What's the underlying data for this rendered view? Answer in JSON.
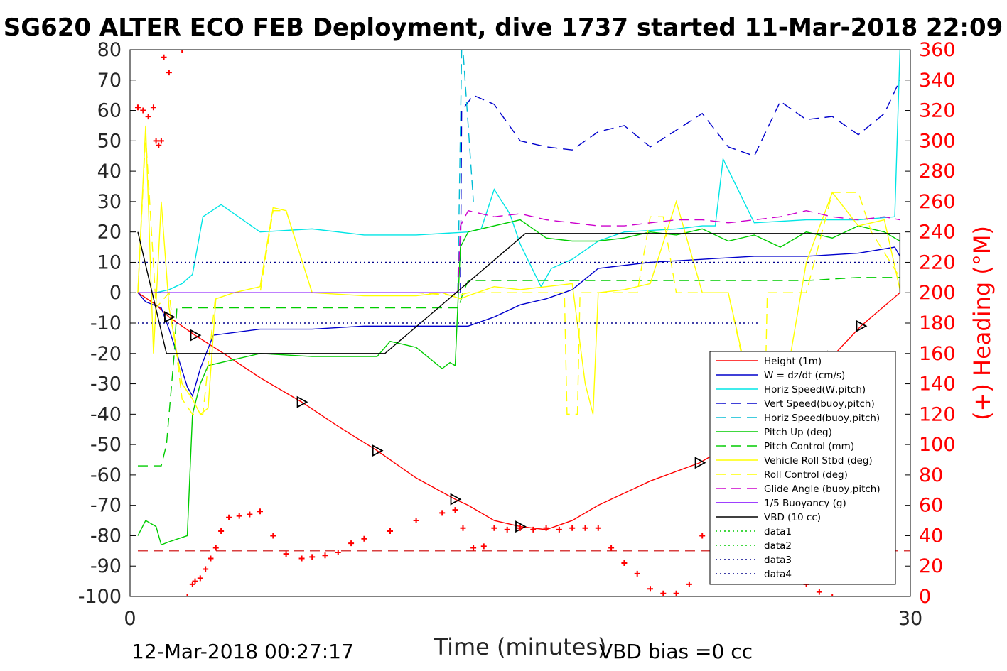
{
  "chart_data": {
    "type": "line",
    "title": "SG620 ALTER ECO FEB Deployment, dive 1737 started 11-Mar-2018 22:09",
    "xlabel": "Time (minutes)",
    "ylabel_right": "(+) Heading (°M)",
    "xlim": [
      0,
      30
    ],
    "ylim_left": [
      -100,
      80
    ],
    "ylim_right": [
      0,
      360
    ],
    "x_ticks": [
      "0",
      "30"
    ],
    "y_ticks_left": [
      "80",
      "70",
      "60",
      "50",
      "40",
      "30",
      "20",
      "10",
      "0",
      "-10",
      "-20",
      "-30",
      "-40",
      "-50",
      "-60",
      "-70",
      "-80",
      "-90",
      "-100"
    ],
    "y_ticks_right": [
      "360",
      "340",
      "320",
      "300",
      "280",
      "260",
      "240",
      "220",
      "200",
      "180",
      "160",
      "140",
      "120",
      "100",
      "80",
      "60",
      "40",
      "20",
      "0"
    ],
    "footer_left": "12-Mar-2018 00:27:17",
    "footer_right": "VBD bias =0 cc",
    "grid": false,
    "legend_position": "lower-right",
    "series": [
      {
        "name": "Height (1m)",
        "color": "#ff0000",
        "style": "solid",
        "x": [
          0.3,
          1.0,
          1.5,
          2.5,
          3.6,
          5,
          6.6,
          8,
          9.5,
          11,
          12.5,
          13,
          14,
          15,
          16,
          17,
          18,
          20,
          21.9,
          23.5,
          24,
          25,
          26,
          27,
          28.1,
          29.6
        ],
        "y": [
          0,
          -4,
          -8,
          -14,
          -20,
          -28,
          -36,
          -44,
          -52,
          -61,
          -68,
          -70,
          -75,
          -77,
          -78,
          -75,
          -70,
          -62,
          -56,
          -48,
          -43,
          -38,
          -30,
          -21,
          -11,
          0
        ]
      },
      {
        "name": "W = dz/dt (cm/s)",
        "color": "#0000cc",
        "style": "solid",
        "x": [
          0.3,
          0.6,
          1.2,
          1.5,
          1.8,
          2.2,
          2.4,
          2.7,
          3.2,
          5,
          7,
          9,
          11,
          13,
          14,
          15,
          16,
          17,
          18,
          20,
          22,
          24,
          26,
          28,
          29.4,
          29.6
        ],
        "y": [
          0,
          -3,
          -5,
          -12,
          -20,
          -31,
          -34,
          -25,
          -14,
          -12,
          -12,
          -11,
          -11,
          -11,
          -8,
          -4,
          -2,
          1,
          8,
          10,
          11,
          12,
          12,
          13,
          15,
          12
        ]
      },
      {
        "name": "Horiz Speed(W,pitch)",
        "color": "#00e5e5",
        "style": "solid",
        "x": [
          0.3,
          1.0,
          1.5,
          2.0,
          2.4,
          2.8,
          3.5,
          5,
          7,
          9,
          11,
          13,
          13.5,
          14,
          14.6,
          15,
          15.8,
          16.2,
          17,
          18,
          19,
          21,
          22,
          22.5,
          22.8,
          24,
          26,
          28,
          29.4,
          29.6
        ],
        "y": [
          0,
          0,
          1,
          3,
          6,
          25,
          29,
          20,
          21,
          19,
          19,
          20,
          21,
          34,
          26,
          16,
          2,
          8,
          11,
          17,
          20,
          21,
          22,
          22,
          44,
          23,
          24,
          24,
          25,
          80
        ]
      },
      {
        "name": "Vert Speed(buoy,pitch)",
        "color": "#0000cc",
        "style": "dashed",
        "x": [
          12.7,
          12.75,
          13.2,
          14,
          14.5,
          15,
          16,
          17,
          18,
          19,
          20,
          22,
          23,
          24,
          25,
          26,
          27,
          28,
          29,
          29.6
        ],
        "y": [
          0,
          60,
          65,
          62,
          56,
          50,
          48,
          47,
          53,
          55,
          48,
          59,
          48,
          45,
          63,
          57,
          58,
          52,
          59,
          70
        ]
      },
      {
        "name": "Horiz Speed(buoy,pitch)",
        "color": "#00bcd4",
        "style": "dashed",
        "x": [
          12.6,
          12.75,
          12.8,
          13.2
        ],
        "y": [
          0,
          80,
          80,
          30
        ]
      },
      {
        "name": "Pitch Up (deg)",
        "color": "#00cc00",
        "style": "solid",
        "x": [
          0.3,
          0.6,
          1.0,
          1.2,
          1.5,
          2.2,
          2.4,
          2.7,
          3.0,
          4.0,
          5,
          7,
          9,
          9.5,
          10,
          11,
          12,
          12.3,
          12.5,
          12.7,
          13,
          14,
          15,
          16,
          17,
          18,
          19,
          20,
          21,
          22,
          23,
          24,
          25,
          26,
          27,
          28,
          29,
          29.6
        ],
        "y": [
          -80,
          -75,
          -77,
          -83,
          -82,
          -80,
          -40,
          -30,
          -24,
          -22,
          -20,
          -21,
          -21,
          -21,
          -16,
          -18,
          -25,
          -23,
          -24,
          15,
          20,
          22,
          24,
          18,
          17,
          17,
          18,
          20,
          19,
          21,
          17,
          19,
          15,
          20,
          18,
          22,
          20,
          17
        ]
      },
      {
        "name": "Pitch Control (mm)",
        "color": "#00cc00",
        "style": "dashed",
        "x": [
          0.3,
          1.2,
          1.4,
          1.5,
          1.6,
          1.7,
          1.8,
          2.5,
          12.6,
          12.7,
          12.8,
          13,
          15,
          17,
          20,
          22,
          24,
          26,
          28,
          29.6
        ],
        "y": [
          -57,
          -57,
          -50,
          -40,
          -30,
          -20,
          -5,
          -5,
          -5,
          -3,
          0,
          4,
          4,
          4,
          4,
          4,
          4,
          4,
          5,
          5
        ]
      },
      {
        "name": "Vehicle Roll Stbd (deg)",
        "color": "#ffff00",
        "style": "solid",
        "x": [
          0.3,
          0.6,
          0.9,
          1.2,
          1.5,
          2.0,
          2.4,
          2.7,
          3.0,
          3.3,
          4.0,
          5,
          5.5,
          6,
          7,
          9,
          11,
          12,
          12.7,
          13,
          14,
          15,
          16,
          17,
          17.5,
          17.8,
          18,
          19,
          20,
          21,
          22,
          23,
          24,
          25,
          26,
          27,
          28,
          29,
          29.6
        ],
        "y": [
          0,
          55,
          -20,
          30,
          -5,
          -30,
          -35,
          -40,
          -38,
          -2,
          0,
          2,
          28,
          27,
          0,
          -1,
          -1,
          0,
          -2,
          -1,
          2,
          1,
          2,
          3,
          -30,
          -40,
          0,
          1,
          3,
          30,
          0,
          0,
          -38,
          -40,
          10,
          33,
          22,
          24,
          1
        ]
      },
      {
        "name": "Roll Control (deg)",
        "color": "#ffff00",
        "style": "dashed",
        "x": [
          0.3,
          0.6,
          1.0,
          1.5,
          2.0,
          2.4,
          2.8,
          3.3,
          5,
          5.5,
          6,
          7,
          9,
          11,
          12.6,
          13,
          15,
          16.7,
          16.8,
          17.2,
          17.3,
          18,
          19,
          19.5,
          20,
          20.5,
          21,
          22,
          23,
          24,
          24.4,
          24.5,
          25,
          26,
          27,
          28,
          28.5,
          29.6
        ],
        "y": [
          0,
          52,
          -5,
          0,
          -35,
          -40,
          -40,
          0,
          0,
          27,
          27,
          0,
          0,
          0,
          -1,
          0,
          0,
          0,
          -40,
          -40,
          0,
          0,
          0,
          0,
          25,
          25,
          0,
          0,
          0,
          -40,
          -40,
          0,
          0,
          0,
          33,
          33,
          20,
          5
        ]
      },
      {
        "name": "Glide Angle (buoy,pitch)",
        "color": "#cc00cc",
        "style": "dashed",
        "x": [
          12.6,
          12.7,
          13,
          14,
          15,
          16,
          17,
          18,
          19,
          20,
          21,
          22,
          23,
          24,
          25,
          26,
          27,
          28,
          29,
          29.6
        ],
        "y": [
          0,
          22,
          27,
          25,
          26,
          24,
          23,
          22,
          22,
          23,
          24,
          24,
          23,
          24,
          25,
          27,
          25,
          24,
          25,
          24
        ]
      },
      {
        "name": "1/5 Buoyancy (g)",
        "color": "#7f00ff",
        "style": "solid",
        "x": [
          0.3,
          12.7
        ],
        "y": [
          0,
          0
        ]
      },
      {
        "name": "VBD (10 cc)",
        "color": "#000000",
        "style": "solid",
        "x": [
          0.3,
          1.4,
          9.8,
          15.2,
          29.6,
          29.6
        ],
        "y": [
          20,
          -20,
          -20,
          19.5,
          19.5,
          0
        ]
      },
      {
        "name": "data1",
        "color": "#00cc00",
        "style": "dotted",
        "x": [],
        "y": []
      },
      {
        "name": "data2",
        "color": "#00cc00",
        "style": "dotted",
        "x": [],
        "y": []
      },
      {
        "name": "data3",
        "color": "#00008b",
        "style": "dotted",
        "x": [
          0.3,
          29.6
        ],
        "y": [
          10,
          10
        ]
      },
      {
        "name": "data4",
        "color": "#00008b",
        "style": "dotted",
        "x": [
          0.3,
          24.2
        ],
        "y": [
          -10,
          -10
        ]
      }
    ],
    "heading_reference": {
      "color": "#cc0000",
      "style": "dashed",
      "x": [
        0.3,
        30
      ],
      "heading": [
        30,
        30
      ]
    },
    "heading_points": {
      "color": "#ff0000",
      "marker": "+",
      "x": [
        0.3,
        0.5,
        0.7,
        0.9,
        1.0,
        1.1,
        1.2,
        1.3,
        1.5,
        1.6,
        1.8,
        2.0,
        2.2,
        2.4,
        2.5,
        2.7,
        2.9,
        3.1,
        3.3,
        3.5,
        3.8,
        4.2,
        4.6,
        5,
        5.5,
        6,
        6.6,
        7,
        7.5,
        8,
        8.5,
        9,
        10,
        11,
        12,
        12.5,
        12.8,
        13.2,
        13.6,
        14,
        14.5,
        15,
        15.5,
        16,
        16.5,
        17,
        17.5,
        18,
        18.5,
        19,
        19.5,
        20,
        20.5,
        21,
        21.5,
        22,
        22.5,
        23,
        23.5,
        24,
        24.5,
        25,
        25.5,
        26,
        26.5,
        27
      ],
      "heading": [
        322,
        320,
        316,
        322,
        300,
        297,
        300,
        355,
        345,
        362,
        362,
        360,
        0,
        8,
        10,
        12,
        18,
        25,
        32,
        43,
        52,
        53,
        54,
        56,
        40,
        28,
        25,
        26,
        27,
        29,
        35,
        38,
        43,
        50,
        55,
        57,
        45,
        32,
        33,
        45,
        44,
        45,
        44,
        45,
        44,
        45,
        45,
        45,
        32,
        22,
        15,
        5,
        2,
        2,
        8,
        40,
        70,
        78,
        90,
        75,
        52,
        28,
        14,
        8,
        3,
        0
      ]
    }
  }
}
